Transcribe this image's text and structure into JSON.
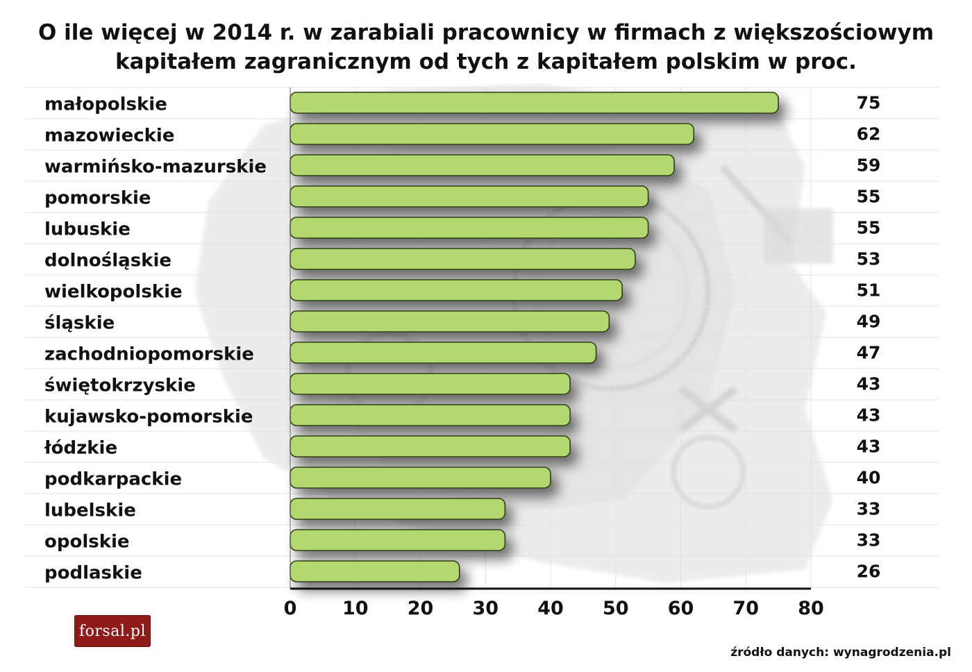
{
  "title": {
    "line1": "O ile więcej w 2014 r. w zarabiali pracownicy w firmach z większościowym",
    "line2": "kapitałem zagranicznym od tych z kapitałem polskim w proc."
  },
  "source": "źródło danych: wynagrodzenia.pl",
  "logo": "forsal.pl",
  "colors": {
    "bar_fill": "#b3d870",
    "bar_stroke": "#2f3d12",
    "axis": "#111111",
    "gridline": "#e2e2e2"
  },
  "chart_data": {
    "type": "bar",
    "orientation": "horizontal",
    "categories": [
      "małopolskie",
      "mazowieckie",
      "warmińsko-mazurskie",
      "pomorskie",
      "lubuskie",
      "dolnośląskie",
      "wielkopolskie",
      "śląskie",
      "zachodniopomorskie",
      "świętokrzyskie",
      "kujawsko-pomorskie",
      "łódzkie",
      "podkarpackie",
      "lubelskie",
      "opolskie",
      "podlaskie"
    ],
    "values": [
      75,
      62,
      59,
      55,
      55,
      53,
      51,
      49,
      47,
      43,
      43,
      43,
      40,
      33,
      33,
      26
    ],
    "value_labels": [
      "75",
      "62",
      "59",
      "55",
      "55",
      "53",
      "51",
      "49",
      "47",
      "43",
      "43",
      "43",
      "40",
      "33",
      "33",
      "26"
    ],
    "xlim": [
      0,
      80
    ],
    "xticks": [
      "0",
      "10",
      "20",
      "30",
      "40",
      "50",
      "60",
      "70",
      "80"
    ],
    "grid": true
  }
}
